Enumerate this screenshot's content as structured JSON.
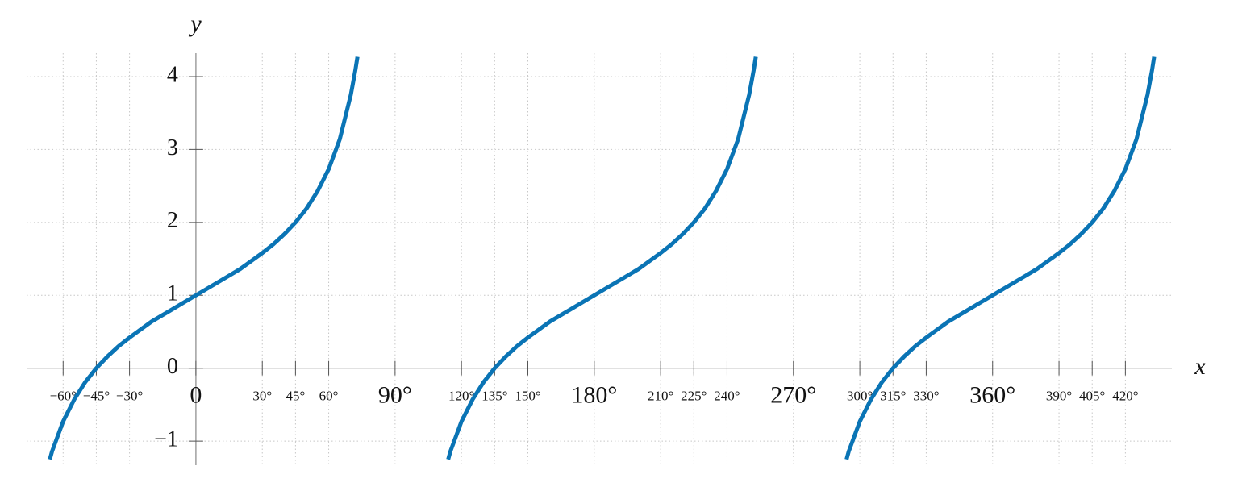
{
  "chart_data": {
    "type": "line",
    "x_label": "x",
    "y_label": "y",
    "color": "#0a74b5",
    "grid": true,
    "xlim": [
      -76.5,
      441
    ],
    "ylim": [
      -1.33,
      4.32
    ],
    "xticks": [
      {
        "value": -60,
        "label": "−60°"
      },
      {
        "value": -45,
        "label": "−45°"
      },
      {
        "value": -30,
        "label": "−30°"
      },
      0,
      {
        "value": 30,
        "label": "30°"
      },
      {
        "value": 45,
        "label": "45°"
      },
      {
        "value": 60,
        "label": "60°"
      },
      {
        "value": 90,
        "label": "90°"
      },
      {
        "value": 120,
        "label": "120°"
      },
      {
        "value": 135,
        "label": "135°"
      },
      {
        "value": 150,
        "label": "150°"
      },
      {
        "value": 180,
        "label": "180°"
      },
      {
        "value": 210,
        "label": "210°"
      },
      {
        "value": 225,
        "label": "225°"
      },
      {
        "value": 240,
        "label": "240°"
      },
      {
        "value": 270,
        "label": "270°"
      },
      {
        "value": 300,
        "label": "300°"
      },
      {
        "value": 315,
        "label": "315°"
      },
      {
        "value": 330,
        "label": "330°"
      },
      {
        "value": 360,
        "label": "360°"
      },
      {
        "value": 390,
        "label": "390°"
      },
      {
        "value": 405,
        "label": "405°"
      },
      {
        "value": 420,
        "label": "420°"
      }
    ],
    "yticks": [
      {
        "value": -1,
        "label": "−1"
      },
      0,
      1,
      2,
      3,
      4
    ],
    "x": [
      -66,
      -65,
      -60,
      -55,
      -50,
      -45,
      -40,
      -35,
      -30,
      -25,
      -20,
      -15,
      -10,
      -5,
      0,
      5,
      10,
      15,
      20,
      25,
      30,
      35,
      40,
      45,
      50,
      55,
      60,
      65,
      70,
      72,
      73,
      90,
      114,
      115,
      120,
      125,
      130,
      135,
      140,
      145,
      150,
      155,
      160,
      165,
      170,
      175,
      180,
      185,
      190,
      195,
      200,
      205,
      210,
      215,
      220,
      225,
      230,
      235,
      240,
      245,
      250,
      252,
      253,
      270,
      294,
      295,
      300,
      305,
      310,
      315,
      320,
      325,
      330,
      335,
      340,
      345,
      350,
      355,
      360,
      365,
      370,
      375,
      380,
      385,
      390,
      395,
      400,
      405,
      410,
      415,
      420,
      425,
      430,
      432,
      433
    ],
    "values": [
      -1.25,
      -1.14,
      -0.73,
      -0.43,
      -0.19,
      0,
      0.16,
      0.3,
      0.42,
      0.53,
      0.64,
      0.73,
      0.82,
      0.91,
      1,
      1.09,
      1.18,
      1.27,
      1.36,
      1.47,
      1.58,
      1.7,
      1.84,
      2,
      2.19,
      2.43,
      2.73,
      3.14,
      3.75,
      4.08,
      4.27,
      null,
      -1.25,
      -1.14,
      -0.73,
      -0.43,
      -0.19,
      0,
      0.16,
      0.3,
      0.42,
      0.53,
      0.64,
      0.73,
      0.82,
      0.91,
      1,
      1.09,
      1.18,
      1.27,
      1.36,
      1.47,
      1.58,
      1.7,
      1.84,
      2,
      2.19,
      2.43,
      2.73,
      3.14,
      3.75,
      4.08,
      4.27,
      null,
      -1.25,
      -1.14,
      -0.73,
      -0.43,
      -0.19,
      0,
      0.16,
      0.3,
      0.42,
      0.53,
      0.64,
      0.73,
      0.82,
      0.91,
      1,
      1.09,
      1.18,
      1.27,
      1.36,
      1.47,
      1.58,
      1.7,
      1.84,
      2,
      2.19,
      2.43,
      2.73,
      3.14,
      3.75,
      4.08,
      4.27
    ]
  }
}
